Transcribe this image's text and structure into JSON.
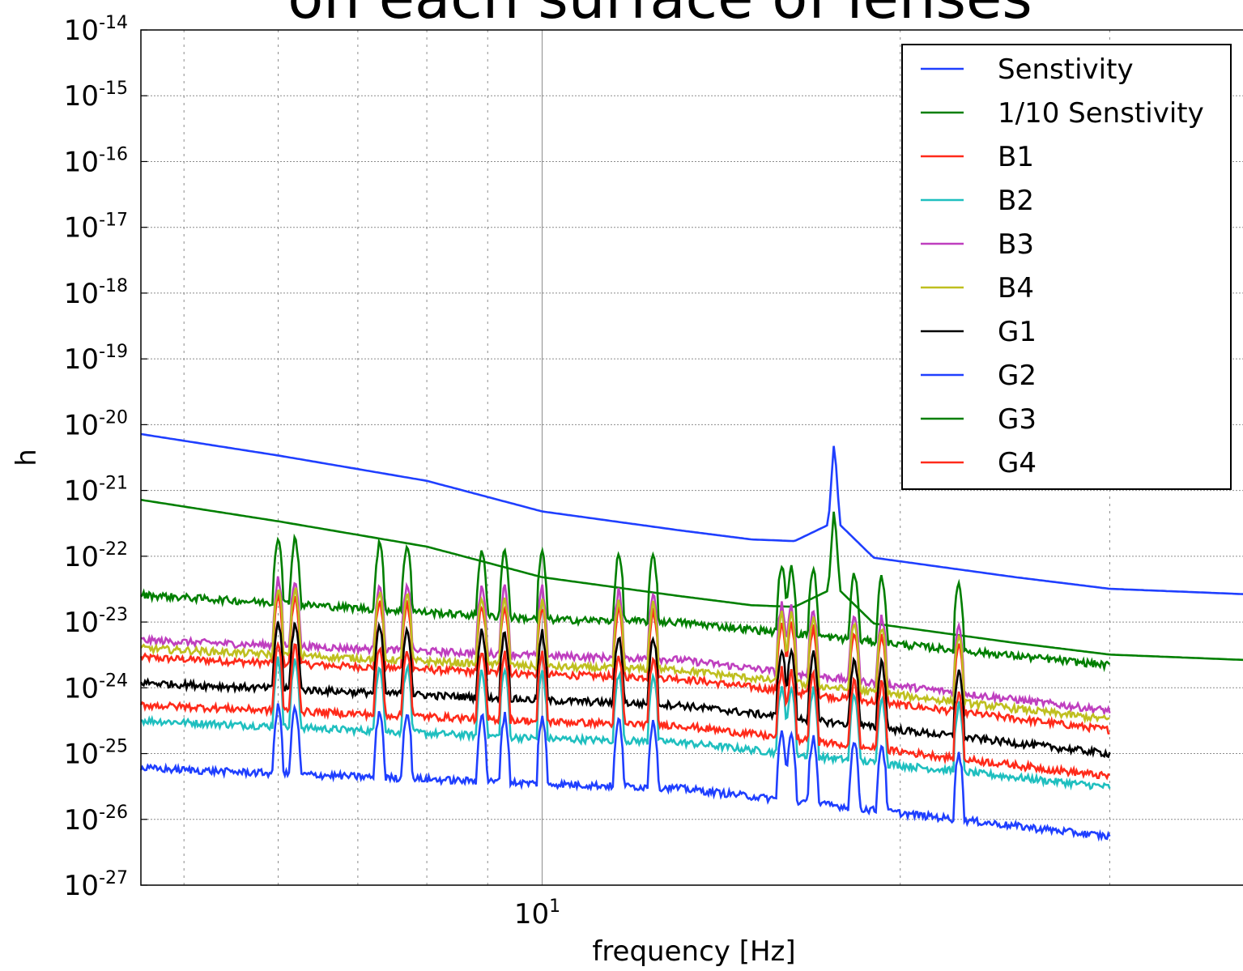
{
  "chart_data": {
    "type": "line",
    "title": "on each surface of lenses",
    "xlabel": "frequency [Hz]",
    "ylabel": "h",
    "xscale": "log",
    "yscale": "log",
    "xlim": [
      4.6,
      40
    ],
    "ylim": [
      1e-27,
      1e-14
    ],
    "grid": true,
    "legend_position": "top-right",
    "x_tick_label": "10",
    "x_tick_exponent": "1",
    "y_tick_base": "10",
    "y_tick_exponents": [
      "-14",
      "-15",
      "-16",
      "-17",
      "-18",
      "-19",
      "-20",
      "-21",
      "-22",
      "-23",
      "-24",
      "-25",
      "-26",
      "-27"
    ],
    "peak_frequencies": [
      6.0,
      6.2,
      7.3,
      7.7,
      8.9,
      9.3,
      10.0,
      11.6,
      12.4,
      15.9,
      16.2,
      16.9,
      18.3,
      19.3,
      22.4
    ],
    "series": [
      {
        "name": "Senstivity",
        "color": "#1f3fff",
        "kind": "sensitivity",
        "amp": 1,
        "points": [
          [
            4.6,
            7.2e-21
          ],
          [
            6,
            3.4e-21
          ],
          [
            8,
            1.4e-21
          ],
          [
            10,
            4.8e-22
          ],
          [
            13,
            2.5e-22
          ],
          [
            15,
            1.8e-22
          ],
          [
            16.3,
            1.7e-22
          ],
          [
            17.4,
            3e-22
          ],
          [
            17.6,
            6e-21
          ],
          [
            17.8,
            3e-22
          ],
          [
            19,
            9.5e-23
          ],
          [
            25,
            4.8e-23
          ],
          [
            30,
            3.2e-23
          ],
          [
            40,
            2.6e-23
          ]
        ]
      },
      {
        "name": "1/10 Senstivity",
        "color": "#007f00",
        "kind": "sensitivity",
        "amp": 1,
        "points": [
          [
            4.6,
            7.2e-22
          ],
          [
            6,
            3.4e-22
          ],
          [
            8,
            1.4e-22
          ],
          [
            10,
            4.8e-23
          ],
          [
            13,
            2.5e-23
          ],
          [
            15,
            1.8e-23
          ],
          [
            16.3,
            1.7e-23
          ],
          [
            17.4,
            3e-23
          ],
          [
            17.6,
            6e-22
          ],
          [
            17.8,
            3e-23
          ],
          [
            19,
            9.5e-24
          ],
          [
            25,
            4.8e-24
          ],
          [
            30,
            3.2e-24
          ],
          [
            40,
            2.6e-24
          ]
        ]
      },
      {
        "name": "B1",
        "color": "#ff2a1a",
        "kind": "measured",
        "amp": 1,
        "points": [
          [
            4.6,
            2.9e-24
          ],
          [
            10,
            1.6e-24
          ],
          [
            13,
            1.4e-24
          ],
          [
            30,
            2.3e-25
          ]
        ]
      },
      {
        "name": "B2",
        "color": "#1fbfbf",
        "kind": "measured",
        "amp": 1,
        "points": [
          [
            4.6,
            3.2e-25
          ],
          [
            10,
            1.7e-25
          ],
          [
            13,
            1.5e-25
          ],
          [
            30,
            3.1e-26
          ]
        ]
      },
      {
        "name": "B3",
        "color": "#bf3fbf",
        "kind": "measured",
        "amp": 1,
        "points": [
          [
            4.6,
            5.3e-24
          ],
          [
            10,
            3.1e-24
          ],
          [
            13,
            2.7e-24
          ],
          [
            30,
            4.5e-25
          ]
        ]
      },
      {
        "name": "B4",
        "color": "#bfbf1f",
        "kind": "measured",
        "amp": 1,
        "points": [
          [
            4.6,
            4e-24
          ],
          [
            10,
            2.1e-24
          ],
          [
            13,
            1.9e-24
          ],
          [
            30,
            3.3e-25
          ]
        ]
      },
      {
        "name": "G1",
        "color": "#000000",
        "kind": "measured",
        "amp": 1,
        "points": [
          [
            4.6,
            1.2e-24
          ],
          [
            10,
            6.5e-25
          ],
          [
            13,
            5.5e-25
          ],
          [
            30,
            1e-25
          ]
        ]
      },
      {
        "name": "G2",
        "color": "#1f3fff",
        "kind": "measured",
        "amp": 1,
        "points": [
          [
            4.6,
            6e-26
          ],
          [
            10,
            3.5e-26
          ],
          [
            13,
            3e-26
          ],
          [
            30,
            5.5e-27
          ]
        ]
      },
      {
        "name": "G3",
        "color": "#007f00",
        "kind": "measured",
        "amp": 1,
        "points": [
          [
            4.6,
            2.6e-23
          ],
          [
            10,
            1.1e-23
          ],
          [
            13,
            1e-23
          ],
          [
            30,
            2.2e-24
          ]
        ]
      },
      {
        "name": "G4",
        "color": "#ff2a1a",
        "kind": "measured",
        "amp": 1,
        "points": [
          [
            4.6,
            5.5e-25
          ],
          [
            10,
            3.1e-25
          ],
          [
            13,
            2.7e-25
          ],
          [
            30,
            4.5e-26
          ]
        ]
      }
    ]
  }
}
